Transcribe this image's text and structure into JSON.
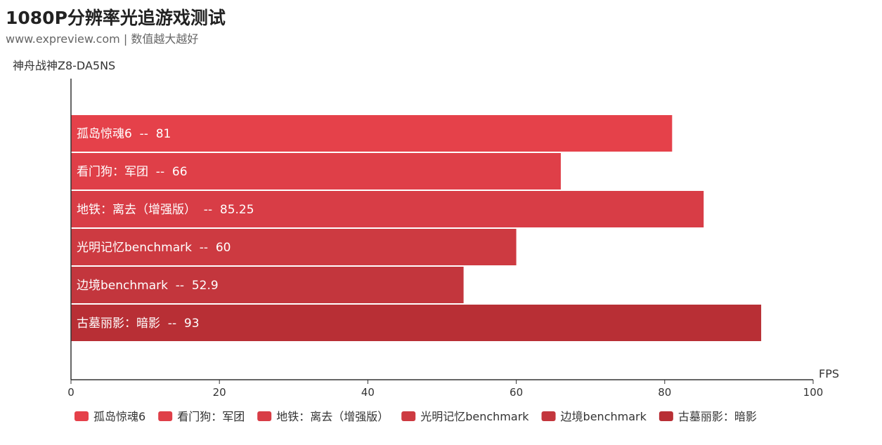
{
  "header": {
    "title": "1080P分辨率光追游戏测试",
    "subtitle": "www.expreview.com | 数值越大越好"
  },
  "chart_data": {
    "type": "bar",
    "orientation": "horizontal",
    "category": "神舟战神Z8-DA5NS",
    "xlabel": "FPS",
    "xlim": [
      0,
      100
    ],
    "ticks": [
      0,
      20,
      40,
      60,
      80,
      100
    ],
    "series": [
      {
        "name": "孤岛惊魂6",
        "value": 81,
        "label": "孤岛惊魂6  --  81",
        "color": "#e5414a"
      },
      {
        "name": "看门狗：军团",
        "value": 66,
        "label": "看门狗：军团  --  66",
        "color": "#df3f48"
      },
      {
        "name": "地铁：离去（增强版）",
        "value": 85.25,
        "label": "地铁：离去（增强版）  --  85.25",
        "color": "#d83d46"
      },
      {
        "name": "光明记忆benchmark",
        "value": 60,
        "label": "光明记忆benchmark  --  60",
        "color": "#cd3a41"
      },
      {
        "name": "边境benchmark",
        "value": 52.9,
        "label": "边境benchmark  --  52.9",
        "color": "#c3363d"
      },
      {
        "name": "古墓丽影：暗影",
        "value": 93,
        "label": "古墓丽影：暗影  --  93",
        "color": "#b82f35"
      }
    ],
    "legend_position": "bottom",
    "grid": false
  }
}
